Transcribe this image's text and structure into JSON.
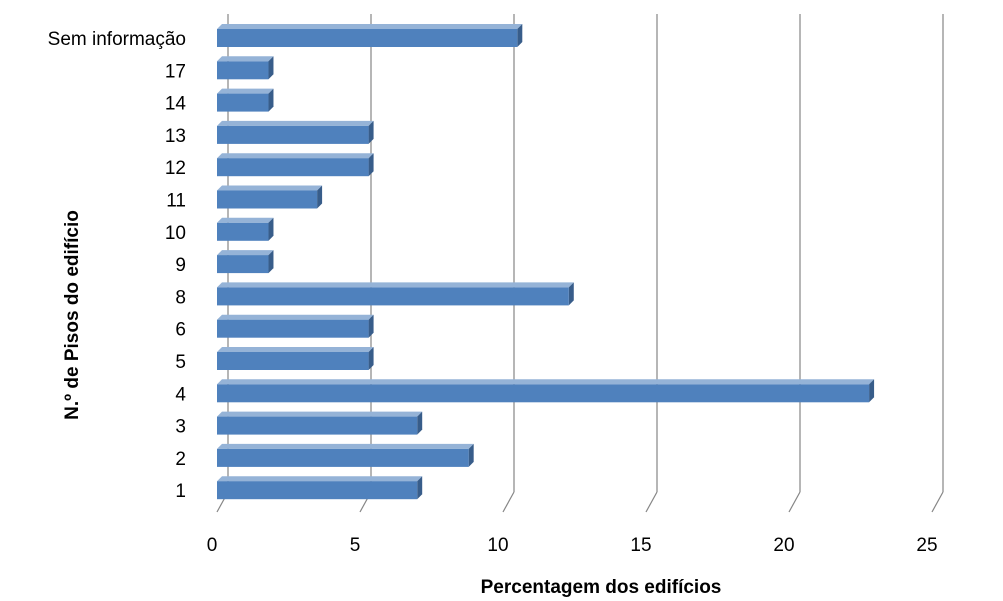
{
  "chart_data": {
    "type": "bar",
    "orientation": "horizontal",
    "style": "3d-clustered",
    "categories": [
      "1",
      "2",
      "3",
      "4",
      "5",
      "6",
      "8",
      "9",
      "10",
      "11",
      "12",
      "13",
      "14",
      "17",
      "Sem informação"
    ],
    "values": [
      7.0,
      8.8,
      7.0,
      22.8,
      5.3,
      5.3,
      12.3,
      1.8,
      1.8,
      3.5,
      5.3,
      5.3,
      1.8,
      1.8,
      10.5
    ],
    "xlabel": "Percentagem dos edifícios",
    "ylabel": "N.º de Pisos do edifício",
    "xlim": [
      0,
      25
    ],
    "xticks": [
      "0",
      "5",
      "10",
      "15",
      "20",
      "25"
    ],
    "grid": true,
    "legend": "none",
    "colors": {
      "bar_front": "#4F81BD",
      "bar_top": "#95B3D7",
      "bar_side": "#385D8A",
      "gridline": "#868686"
    }
  }
}
